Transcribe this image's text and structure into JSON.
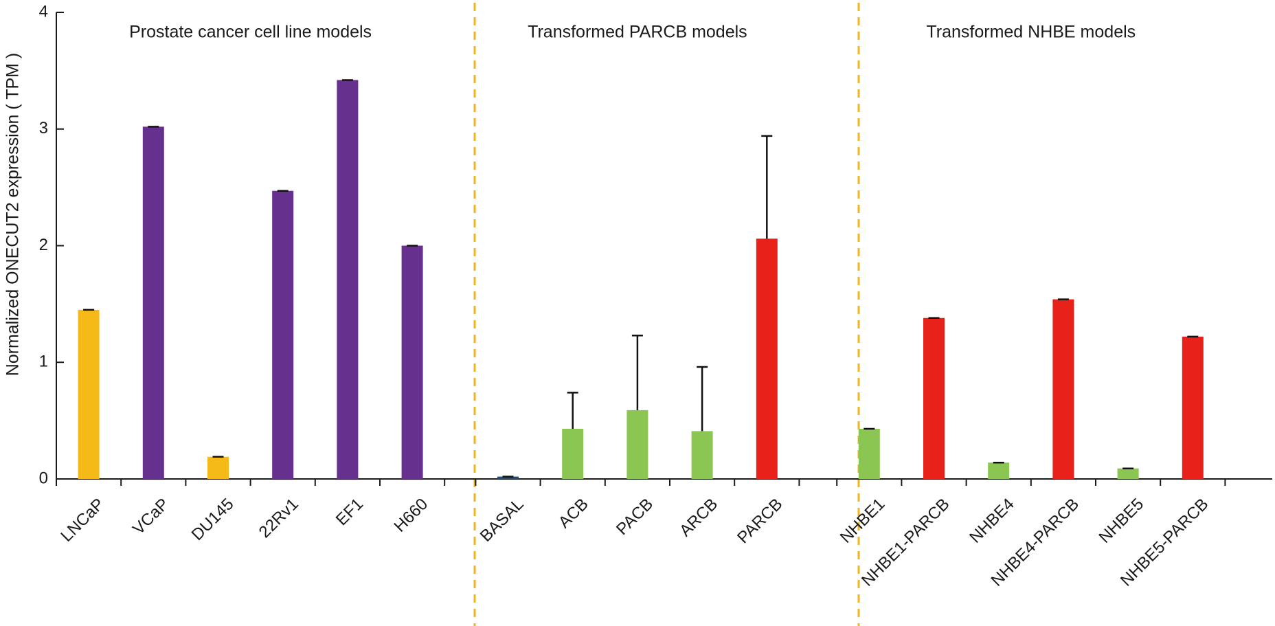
{
  "chart_data": {
    "type": "bar",
    "ylabel": "Normalized ONECUT2 expression ( TPM )",
    "xlabel": "",
    "ylim": [
      0,
      4
    ],
    "yticks": [
      "0",
      "1",
      "2",
      "3",
      "4"
    ],
    "grid": false,
    "legend": "none",
    "groups": [
      {
        "title": "Prostate cancer cell line models",
        "size": 6
      },
      {
        "title": "Transformed PARCB models",
        "size": 5
      },
      {
        "title": "Transformed NHBE models",
        "size": 6
      }
    ],
    "categories": [
      "LNCaP",
      "VCaP",
      "DU145",
      "22Rv1",
      "EF1",
      "H660",
      "BASAL",
      "ACB",
      "PACB",
      "ARCB",
      "PARCB",
      "NHBE1",
      "NHBE1-PARCB",
      "NHBE4",
      "NHBE4-PARCB",
      "NHBE5",
      "NHBE5-PARCB"
    ],
    "values": [
      1.45,
      3.02,
      0.19,
      2.47,
      3.42,
      2.0,
      0.02,
      0.43,
      0.59,
      0.41,
      2.06,
      0.43,
      1.38,
      0.14,
      1.54,
      0.09,
      1.22
    ],
    "errors": [
      0,
      0,
      0,
      0,
      0,
      0,
      0,
      0.31,
      0.64,
      0.55,
      0.88,
      0,
      0,
      0,
      0,
      0,
      0
    ],
    "bar_colors": [
      "#F5BA18",
      "#66308E",
      "#F5BA18",
      "#66308E",
      "#66308E",
      "#66308E",
      "#2B4A6B",
      "#8BC652",
      "#8BC652",
      "#8BC652",
      "#E8221B",
      "#8BC652",
      "#E8221B",
      "#8BC652",
      "#E8221B",
      "#8BC652",
      "#E8221B"
    ],
    "separator_color": "#F0B41E"
  }
}
